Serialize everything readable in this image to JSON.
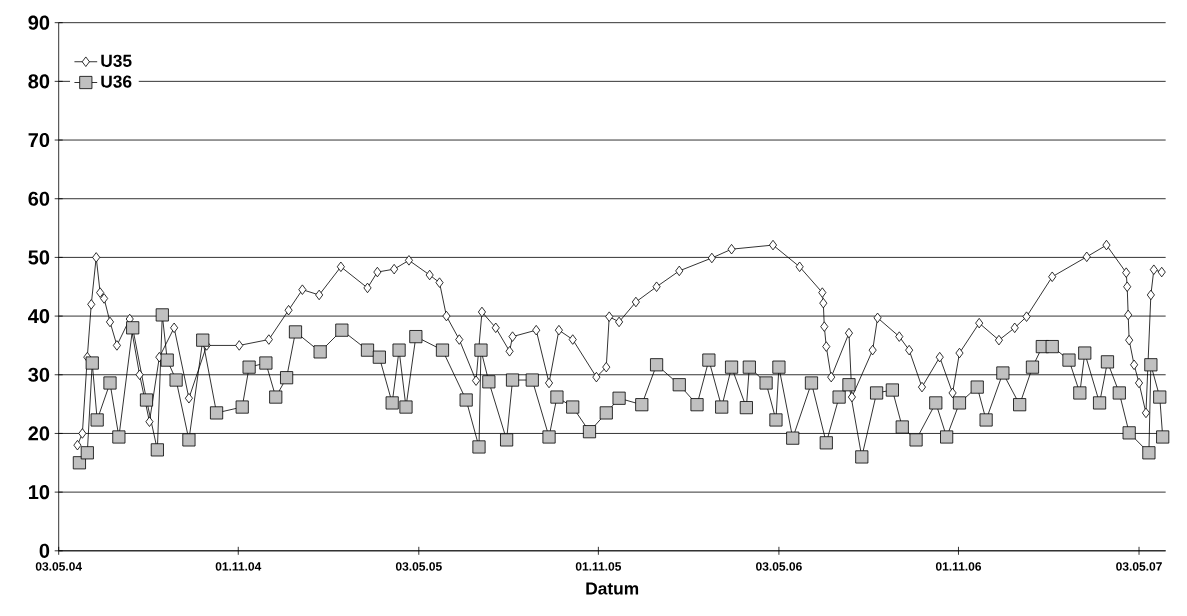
{
  "chart_data": {
    "type": "line",
    "xlabel": "Datum",
    "xlim": [
      "2004-05-03",
      "2007-05-30"
    ],
    "ylim": [
      0,
      90
    ],
    "xticks": [
      {
        "value": "2004-05-03",
        "label": "03.05.04"
      },
      {
        "value": "2004-11-01",
        "label": "01.11.04"
      },
      {
        "value": "2005-05-03",
        "label": "03.05.05"
      },
      {
        "value": "2005-11-01",
        "label": "01.11.05"
      },
      {
        "value": "2006-05-03",
        "label": "03.05.06"
      },
      {
        "value": "2006-11-01",
        "label": "01.11.06"
      },
      {
        "value": "2007-05-03",
        "label": "03.05.07"
      }
    ],
    "yticks": [
      0,
      10,
      20,
      30,
      40,
      50,
      60,
      70,
      80,
      90
    ],
    "grid": "y",
    "legend": "top left",
    "line_style": "solid",
    "series": [
      {
        "name": "U35",
        "color": "#ffffff",
        "marker": "diamond",
        "x": [
          "2004-05-22",
          "2004-05-27",
          "2004-06-01",
          "2004-06-05",
          "2004-06-10",
          "2004-06-14",
          "2004-06-18",
          "2004-06-24",
          "2004-07-01",
          "2004-07-14",
          "2004-07-24",
          "2004-08-03",
          "2004-08-13",
          "2004-08-28",
          "2004-09-12",
          "2004-09-30",
          "2004-11-02",
          "2004-12-02",
          "2004-12-22",
          "2005-01-05",
          "2005-01-22",
          "2005-02-13",
          "2005-03-12",
          "2005-03-22",
          "2005-04-08",
          "2005-04-23",
          "2005-05-14",
          "2005-05-24",
          "2005-05-31",
          "2005-06-13",
          "2005-06-30",
          "2005-07-06",
          "2005-07-20",
          "2005-08-03",
          "2005-08-06",
          "2005-08-30",
          "2005-09-12",
          "2005-09-22",
          "2005-10-06",
          "2005-10-30",
          "2005-11-09",
          "2005-11-12",
          "2005-11-22",
          "2005-12-09",
          "2005-12-30",
          "2006-01-22",
          "2006-02-24",
          "2006-03-16",
          "2006-04-27",
          "2006-05-24",
          "2006-06-16",
          "2006-06-17",
          "2006-06-18",
          "2006-06-20",
          "2006-06-25",
          "2006-07-13",
          "2006-07-16",
          "2006-08-06",
          "2006-08-11",
          "2006-09-02",
          "2006-09-12",
          "2006-09-25",
          "2006-10-13",
          "2006-10-26",
          "2006-11-02",
          "2006-11-22",
          "2006-12-12",
          "2006-12-28",
          "2007-01-09",
          "2007-02-04",
          "2007-03-11",
          "2007-03-31",
          "2007-04-20",
          "2007-04-21",
          "2007-04-22",
          "2007-04-23",
          "2007-04-28",
          "2007-05-03",
          "2007-05-10",
          "2007-05-15",
          "2007-05-18",
          "2007-05-26"
        ],
        "values": [
          18,
          20,
          33,
          42,
          50,
          44,
          43,
          39,
          35,
          39.5,
          30,
          22,
          33,
          38,
          26,
          35,
          35,
          36,
          41,
          44.5,
          43.6,
          48.4,
          44.8,
          47.5,
          48,
          49.5,
          47,
          45.7,
          40,
          36,
          29,
          40.7,
          38,
          34,
          36.5,
          37.6,
          28.6,
          37.6,
          36,
          29.6,
          31.3,
          39.9,
          39,
          42.4,
          45,
          47.7,
          49.9,
          51.4,
          52.1,
          48.4,
          44,
          42.2,
          38.2,
          34.8,
          29.6,
          37.1,
          26.2,
          34.2,
          39.7,
          36.5,
          34.2,
          27.9,
          33,
          26.9,
          33.7,
          38.8,
          35.9,
          38,
          39.9,
          46.7,
          50.1,
          52.1,
          47.4,
          45,
          40.2,
          35.9,
          31.7,
          28.6,
          23.5,
          43.6,
          47.9,
          47.5
        ]
      },
      {
        "name": "U36",
        "color": "#c0c0c0",
        "marker": "square",
        "x": [
          "2004-05-24",
          "2004-06-01",
          "2004-06-06",
          "2004-06-11",
          "2004-06-24",
          "2004-07-03",
          "2004-07-17",
          "2004-07-31",
          "2004-08-11",
          "2004-08-16",
          "2004-08-21",
          "2004-08-30",
          "2004-09-12",
          "2004-09-26",
          "2004-10-10",
          "2004-11-05",
          "2004-11-12",
          "2004-11-29",
          "2004-12-09",
          "2004-12-20",
          "2004-12-29",
          "2005-01-23",
          "2005-02-14",
          "2005-03-12",
          "2005-03-24",
          "2005-04-06",
          "2005-04-13",
          "2005-04-20",
          "2005-04-30",
          "2005-05-27",
          "2005-06-20",
          "2005-07-03",
          "2005-07-05",
          "2005-07-13",
          "2005-07-31",
          "2005-08-06",
          "2005-08-26",
          "2005-09-12",
          "2005-09-20",
          "2005-10-06",
          "2005-10-23",
          "2005-11-09",
          "2005-11-22",
          "2005-12-15",
          "2005-12-30",
          "2006-01-22",
          "2006-02-09",
          "2006-02-21",
          "2006-03-06",
          "2006-03-16",
          "2006-03-31",
          "2006-04-03",
          "2006-04-20",
          "2006-04-30",
          "2006-05-03",
          "2006-05-17",
          "2006-06-05",
          "2006-06-20",
          "2006-07-03",
          "2006-07-13",
          "2006-07-26",
          "2006-08-10",
          "2006-08-26",
          "2006-09-05",
          "2006-09-19",
          "2006-10-09",
          "2006-10-20",
          "2006-11-02",
          "2006-11-20",
          "2006-11-29",
          "2006-12-16",
          "2007-01-02",
          "2007-01-15",
          "2007-01-25",
          "2007-02-04",
          "2007-02-21",
          "2007-03-04",
          "2007-03-09",
          "2007-03-24",
          "2007-04-01",
          "2007-04-13",
          "2007-04-23",
          "2007-05-13",
          "2007-05-15",
          "2007-05-24",
          "2007-05-27"
        ],
        "values": [
          15,
          16.7,
          32,
          22.3,
          28.6,
          19.4,
          38,
          25.7,
          17.2,
          40.2,
          32.5,
          29.1,
          18.9,
          35.9,
          23.5,
          24.5,
          31.3,
          32,
          26.2,
          29.5,
          37.3,
          33.9,
          37.6,
          34.2,
          33,
          25.2,
          34.2,
          24.5,
          36.5,
          34.2,
          25.7,
          17.7,
          34.2,
          28.8,
          18.9,
          29.1,
          29.1,
          19.4,
          26.2,
          24.5,
          20.3,
          23.5,
          26,
          24.9,
          31.7,
          28.3,
          24.9,
          32.5,
          24.5,
          31.3,
          24.4,
          31.3,
          28.6,
          22.3,
          31.3,
          19.2,
          28.6,
          18.4,
          26.2,
          28.3,
          16,
          26.9,
          27.4,
          21.1,
          18.9,
          25.2,
          19.4,
          25.2,
          27.9,
          22.3,
          30.3,
          24.9,
          31.3,
          34.8,
          34.8,
          32.5,
          26.9,
          33.7,
          25.2,
          32.2,
          26.9,
          20.1,
          16.7,
          31.7,
          26.2,
          19.4
        ]
      }
    ]
  }
}
